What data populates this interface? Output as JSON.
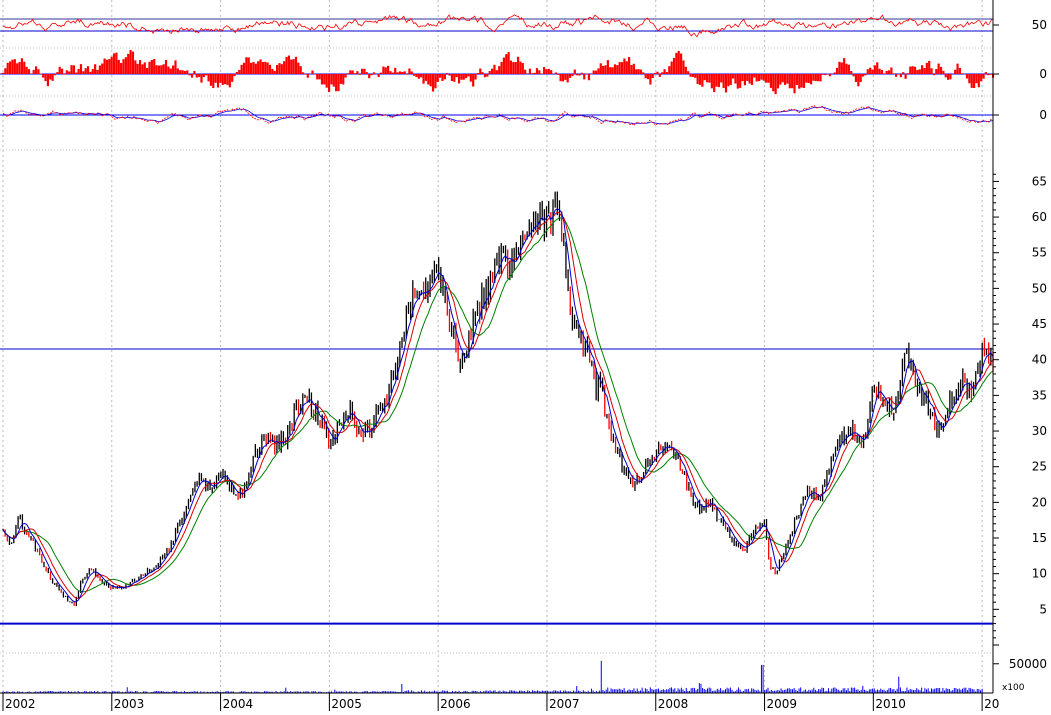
{
  "colors": {
    "background": "#ffffff",
    "price_candle": "#000000",
    "ma_short": "#0000cc",
    "ma_mid": "#d80000",
    "ma_long": "#008000",
    "oscillator": "#ff0000",
    "histogram": "#ff0000",
    "signal_line": "#0000ff",
    "reference_line": "#0000cc",
    "volume": "#0000ff",
    "grid": "#bbbbbb",
    "axis": "#000000"
  },
  "x_axis": {
    "years": [
      "2002",
      "2003",
      "2004",
      "2005",
      "2006",
      "2007",
      "2008",
      "2009",
      "2010",
      "20"
    ]
  },
  "panels": {
    "oscillator": {
      "ticks": [
        {
          "value": 50,
          "label": "50"
        }
      ],
      "range": [
        0,
        100
      ],
      "lines": [
        65,
        35
      ]
    },
    "histogram": {
      "ticks": [
        {
          "value": 0,
          "label": "0"
        }
      ],
      "range": [
        -1,
        1
      ]
    },
    "momentum": {
      "ticks": [
        {
          "value": 0,
          "label": "0"
        }
      ],
      "range": [
        -1,
        1
      ]
    },
    "volume": {
      "ticks": [
        {
          "value": 50000,
          "label": "50000"
        }
      ],
      "multiplier_label": "x100",
      "range": [
        0,
        65000
      ]
    }
  },
  "chart_data": {
    "type": "line",
    "title": "",
    "xlabel": "",
    "ylabel": "",
    "x_range": [
      2002.0,
      2011.1
    ],
    "ylim": [
      0,
      68
    ],
    "yticks": [
      5,
      10,
      15,
      20,
      25,
      30,
      35,
      40,
      45,
      50,
      55,
      60,
      65
    ],
    "grid": true,
    "legend": "none",
    "horizontal_lines": [
      41.5,
      3
    ],
    "series": [
      {
        "role": "price",
        "x": [
          2002.0,
          2002.08,
          2002.15,
          2002.25,
          2002.35,
          2002.45,
          2002.55,
          2002.65,
          2002.72,
          2002.8,
          2002.9,
          2003.0,
          2003.1,
          2003.2,
          2003.3,
          2003.4,
          2003.5,
          2003.6,
          2003.7,
          2003.8,
          2003.9,
          2004.0,
          2004.1,
          2004.2,
          2004.3,
          2004.4,
          2004.5,
          2004.6,
          2004.7,
          2004.8,
          2004.9,
          2005.0,
          2005.1,
          2005.2,
          2005.3,
          2005.4,
          2005.5,
          2005.6,
          2005.7,
          2005.8,
          2005.9,
          2005.98,
          2006.05,
          2006.12,
          2006.2,
          2006.28,
          2006.35,
          2006.42,
          2006.5,
          2006.6,
          2006.7,
          2006.8,
          2006.9,
          2007.0,
          2007.1,
          2007.2,
          2007.3,
          2007.4,
          2007.45,
          2007.5,
          2007.52,
          2007.6,
          2007.7,
          2007.8,
          2007.9,
          2008.0,
          2008.1,
          2008.2,
          2008.3,
          2008.4,
          2008.5,
          2008.6,
          2008.7,
          2008.8,
          2008.9,
          2009.0,
          2009.05,
          2009.1,
          2009.2,
          2009.3,
          2009.4,
          2009.5,
          2009.6,
          2009.7,
          2009.8,
          2009.9,
          2010.0,
          2010.1,
          2010.2,
          2010.3,
          2010.4,
          2010.5,
          2010.6,
          2010.7,
          2010.8,
          2010.9,
          2011.0,
          2011.1
        ],
        "values": [
          16,
          14,
          18,
          15,
          12,
          9,
          7,
          5.5,
          9,
          11,
          9,
          8,
          8,
          9,
          10,
          11,
          13,
          16,
          20,
          23,
          22,
          24,
          22,
          21,
          26,
          29,
          28,
          29,
          33,
          35,
          32,
          28,
          31,
          33,
          29,
          31,
          34,
          38,
          45,
          50,
          49,
          55,
          50,
          45,
          40,
          42,
          46,
          49,
          52,
          55,
          53,
          58,
          61,
          59,
          62,
          48,
          42,
          40,
          35,
          38,
          33,
          29,
          25,
          22,
          25,
          27,
          28,
          26,
          22,
          19,
          20,
          17,
          15,
          13,
          16,
          17,
          11,
          10,
          14,
          18,
          22,
          20,
          25,
          29,
          30,
          28,
          36,
          34,
          33,
          41,
          36,
          34,
          30,
          34,
          37,
          36,
          41,
          40
        ]
      },
      {
        "role": "ma_short",
        "period": 5
      },
      {
        "role": "ma_mid",
        "period": 9
      },
      {
        "role": "ma_long",
        "period": 16
      }
    ]
  }
}
